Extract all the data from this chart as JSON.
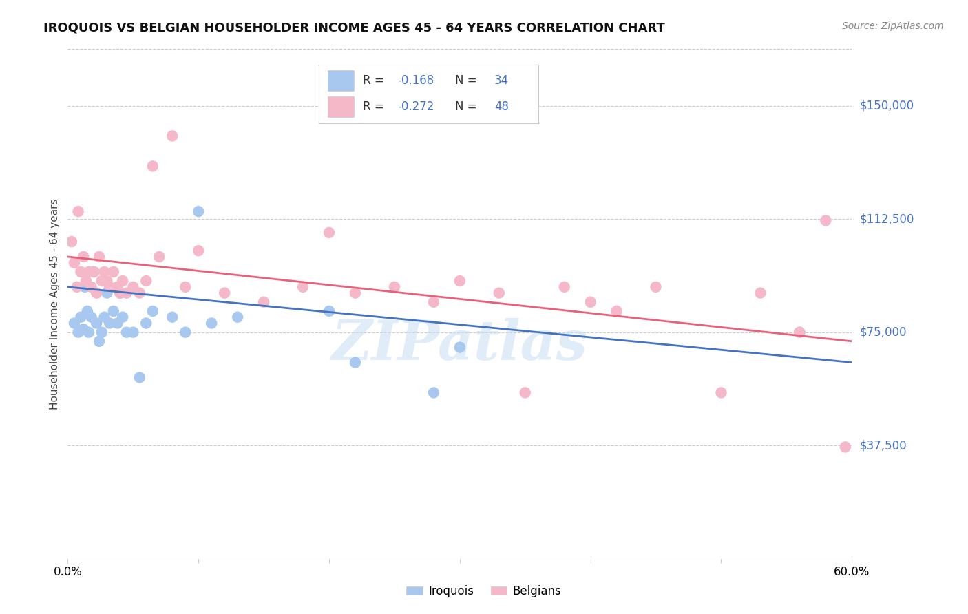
{
  "title": "IROQUOIS VS BELGIAN HOUSEHOLDER INCOME AGES 45 - 64 YEARS CORRELATION CHART",
  "source": "Source: ZipAtlas.com",
  "ylabel": "Householder Income Ages 45 - 64 years",
  "ytick_labels": [
    "$37,500",
    "$75,000",
    "$112,500",
    "$150,000"
  ],
  "ytick_values": [
    37500,
    75000,
    112500,
    150000
  ],
  "ymin": 0,
  "ymax": 168750,
  "xmin": 0.0,
  "xmax": 0.6,
  "color_iroquois": "#a8c8f0",
  "color_belgians": "#f5b8c8",
  "color_iroquois_line": "#4472C4",
  "color_belgians_line": "#e8607a",
  "watermark": "ZIPatlas",
  "legend_r1": "R = ",
  "legend_v1": "-0.168",
  "legend_n1": "  N = ",
  "legend_nv1": "34",
  "legend_r2": "R = ",
  "legend_v2": "-0.272",
  "legend_n2": "  N = ",
  "legend_nv2": "48",
  "iroquois_x": [
    0.005,
    0.008,
    0.01,
    0.012,
    0.013,
    0.015,
    0.016,
    0.018,
    0.02,
    0.022,
    0.024,
    0.026,
    0.028,
    0.03,
    0.032,
    0.035,
    0.038,
    0.04,
    0.042,
    0.045,
    0.05,
    0.055,
    0.06,
    0.065,
    0.08,
    0.09,
    0.1,
    0.11,
    0.13,
    0.2,
    0.22,
    0.28,
    0.3,
    0.56
  ],
  "iroquois_y": [
    78000,
    75000,
    80000,
    76000,
    90000,
    82000,
    75000,
    80000,
    95000,
    78000,
    72000,
    75000,
    80000,
    88000,
    78000,
    82000,
    78000,
    88000,
    80000,
    75000,
    75000,
    60000,
    78000,
    82000,
    80000,
    75000,
    115000,
    78000,
    80000,
    82000,
    65000,
    55000,
    70000,
    75000
  ],
  "belgians_x": [
    0.003,
    0.005,
    0.007,
    0.008,
    0.01,
    0.012,
    0.014,
    0.016,
    0.018,
    0.02,
    0.022,
    0.024,
    0.026,
    0.028,
    0.03,
    0.032,
    0.035,
    0.038,
    0.04,
    0.042,
    0.045,
    0.05,
    0.055,
    0.06,
    0.065,
    0.07,
    0.08,
    0.09,
    0.1,
    0.12,
    0.15,
    0.18,
    0.2,
    0.22,
    0.25,
    0.28,
    0.3,
    0.33,
    0.35,
    0.38,
    0.4,
    0.42,
    0.45,
    0.5,
    0.53,
    0.56,
    0.58,
    0.595
  ],
  "belgians_y": [
    105000,
    98000,
    90000,
    115000,
    95000,
    100000,
    92000,
    95000,
    90000,
    95000,
    88000,
    100000,
    92000,
    95000,
    92000,
    90000,
    95000,
    90000,
    88000,
    92000,
    88000,
    90000,
    88000,
    92000,
    130000,
    100000,
    140000,
    90000,
    102000,
    88000,
    85000,
    90000,
    108000,
    88000,
    90000,
    85000,
    92000,
    88000,
    55000,
    90000,
    85000,
    82000,
    90000,
    55000,
    88000,
    75000,
    112000,
    37000
  ]
}
